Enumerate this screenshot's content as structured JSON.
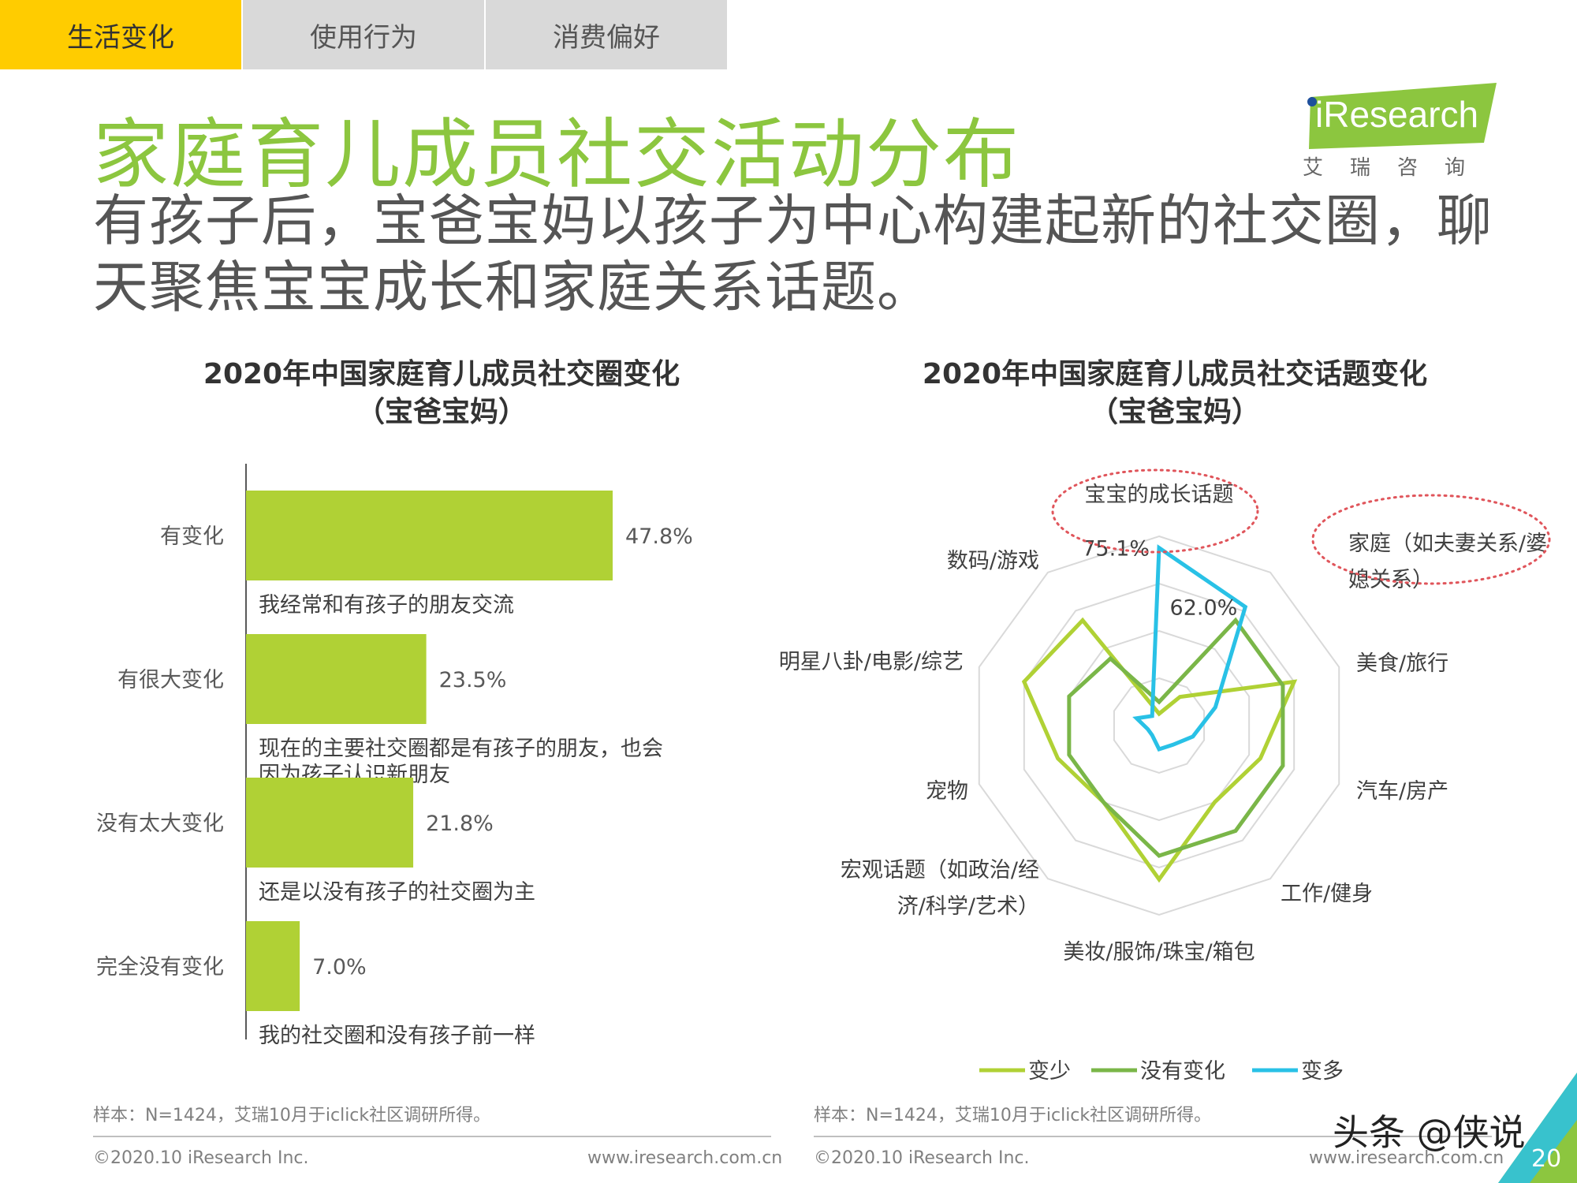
{
  "tabs": [
    {
      "label": "生活变化",
      "active": true
    },
    {
      "label": "使用行为",
      "active": false
    },
    {
      "label": "消费偏好",
      "active": false
    }
  ],
  "title": "家庭育儿成员社交活动分布",
  "subtitle": "有孩子后，宝爸宝妈以孩子为中心构建起新的社交圈，聊天聚焦宝宝成长和家庭关系话题。",
  "logo": {
    "text": "iResearch",
    "sub": "艾瑞咨询"
  },
  "colors": {
    "accent_green": "#8cc63f",
    "bar_green": "#b0d135",
    "tab_yellow": "#ffcc00",
    "less": "#b0d135",
    "same": "#7ab648",
    "more": "#29c1e6"
  },
  "left_chart": {
    "title_line1": "2020年中国家庭育儿成员社交圈变化",
    "title_line2": "（宝爸宝妈）",
    "footnote": "样本：N=1424，艾瑞10月于iclick社区调研所得。"
  },
  "right_chart": {
    "title_line1": "2020年中国家庭育儿成员社交话题变化",
    "title_line2": "（宝爸宝妈）",
    "footnote": "样本：N=1424，艾瑞10月于iclick社区调研所得。"
  },
  "footer": {
    "copyright": "©2020.10 iResearch Inc.",
    "url": "www.iresearch.com.cn",
    "page": "20"
  },
  "watermark": "头条 @侠说",
  "chart_data": [
    {
      "type": "bar",
      "orientation": "horizontal",
      "categories": [
        "有变化",
        "有很大变化",
        "没有太大变化",
        "完全没有变化"
      ],
      "values": [
        47.8,
        23.5,
        21.8,
        7.0
      ],
      "value_labels": [
        "47.8%",
        "23.5%",
        "21.8%",
        "7.0%"
      ],
      "notes": [
        [
          "我经常和有孩子的朋友交流"
        ],
        [
          "现在的主要社交圈都是有孩子的朋友，也会",
          "因为孩子认识新朋友"
        ],
        [
          "还是以没有孩子的社交圈为主"
        ],
        [
          "我的社交圈和没有孩子前一样"
        ]
      ],
      "xlim": [
        0,
        50
      ]
    },
    {
      "type": "radar",
      "axes": [
        [
          "宝宝的成长话题"
        ],
        [
          "家庭（如夫妻关系/婆",
          "媳关系）"
        ],
        [
          "美食/旅行"
        ],
        [
          "汽车/房产"
        ],
        [
          "工作/健身"
        ],
        [
          "美妆/服饰/珠宝/箱包"
        ],
        [
          "宏观话题（如政治/经",
          "济/科学/艺术）"
        ],
        [
          "宠物"
        ],
        [
          "明星八卦/电影/综艺"
        ],
        [
          "数码/游戏"
        ]
      ],
      "rmax": 80,
      "series": [
        {
          "name": "变少",
          "values": [
            5,
            15,
            60,
            45,
            40,
            65,
            40,
            45,
            60,
            55
          ]
        },
        {
          "name": "没有变化",
          "values": [
            10,
            55,
            55,
            55,
            55,
            55,
            40,
            40,
            40,
            35
          ]
        },
        {
          "name": "变多",
          "values": [
            75.1,
            62.0,
            25,
            15,
            10,
            10,
            5,
            5,
            10,
            5
          ]
        }
      ],
      "annotations": [
        {
          "axis": 0,
          "series": "变多",
          "label": "75.1%"
        },
        {
          "axis": 1,
          "series": "变多",
          "label": "62.0%"
        }
      ]
    }
  ]
}
